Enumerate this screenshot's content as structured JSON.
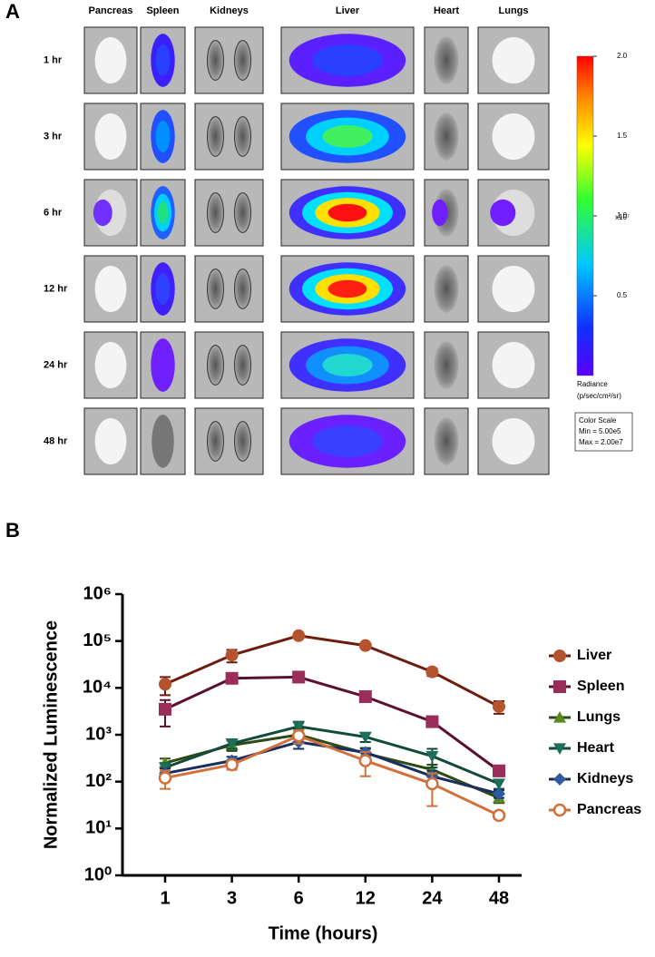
{
  "figure": {
    "panel_label": "A",
    "columns": [
      "Pancreas",
      "Spleen",
      "Kidneys",
      "Liver",
      "Heart",
      "Lungs"
    ],
    "rows": [
      "1 hr",
      "3 hr",
      "6 hr",
      "12 hr",
      "24 hr",
      "48 hr"
    ],
    "colorbar": {
      "lim": [
        0,
        2
      ],
      "ticks": [
        {
          "value": 2,
          "label": "2.0"
        },
        {
          "value": 1.5,
          "label": "1.5"
        },
        {
          "value": 1,
          "label": "1.0"
        },
        {
          "value": 0.5,
          "label": "0.5"
        }
      ],
      "multiplier": "x10⁷",
      "unit_title": "Radiance",
      "unit": "(p/sec/cm²/sr)",
      "scale_box": [
        "Color Scale",
        "Min = 5.00e5",
        "Max = 2.00e7"
      ]
    }
  },
  "chart_data": {
    "type": "line",
    "panel_label": "B",
    "x_label": "Time (hours)",
    "y_label": "Normalized Luminescence",
    "categories": [
      "1",
      "3",
      "6",
      "12",
      "24",
      "48"
    ],
    "log_y": true,
    "ylim": [
      1,
      1000000
    ],
    "yticks": [
      {
        "value": 1,
        "label": "10⁰"
      },
      {
        "value": 10,
        "label": "10¹"
      },
      {
        "value": 100,
        "label": "10²"
      },
      {
        "value": 1000,
        "label": "10³"
      },
      {
        "value": 10000,
        "label": "10⁴"
      },
      {
        "value": 100000,
        "label": "10⁵"
      },
      {
        "value": 1000000,
        "label": "10⁶"
      }
    ],
    "legend": "right",
    "series": [
      {
        "name": "Liver",
        "color": "#6e1c10",
        "marker_color": "#b5532e",
        "marker": "circle",
        "values": [
          12000,
          50000,
          130000,
          80000,
          22000,
          4000
        ],
        "errors": [
          5000,
          15000,
          10000,
          8000,
          4000,
          1200
        ]
      },
      {
        "name": "Spleen",
        "color": "#5a1030",
        "marker_color": "#9b2d5a",
        "marker": "square",
        "values": [
          3500,
          16000,
          17000,
          6500,
          1900,
          170
        ],
        "errors": [
          2000,
          3000,
          3000,
          1500,
          400,
          40
        ]
      },
      {
        "name": "Lungs",
        "color": "#2d4a14",
        "marker_color": "#5a8a1e",
        "marker": "triangle",
        "values": [
          250,
          600,
          1000,
          400,
          180,
          45
        ],
        "errors": [
          60,
          150,
          300,
          100,
          50,
          10
        ]
      },
      {
        "name": "Heart",
        "color": "#124a3c",
        "marker_color": "#1e6e5a",
        "marker": "triangle-down",
        "values": [
          200,
          650,
          1500,
          900,
          350,
          90
        ],
        "errors": [
          50,
          150,
          400,
          200,
          150,
          20
        ]
      },
      {
        "name": "Kidneys",
        "color": "#1a2e5e",
        "marker_color": "#2e5aa0",
        "marker": "diamond",
        "values": [
          150,
          280,
          700,
          420,
          130,
          55
        ],
        "errors": [
          40,
          60,
          200,
          100,
          40,
          10
        ]
      },
      {
        "name": "Pancreas",
        "color": "#d2703c",
        "marker_color": "#d2703c",
        "marker": "circle-open",
        "values": [
          120,
          230,
          950,
          280,
          90,
          19
        ],
        "errors": [
          50,
          50,
          300,
          150,
          60,
          3
        ]
      }
    ]
  }
}
